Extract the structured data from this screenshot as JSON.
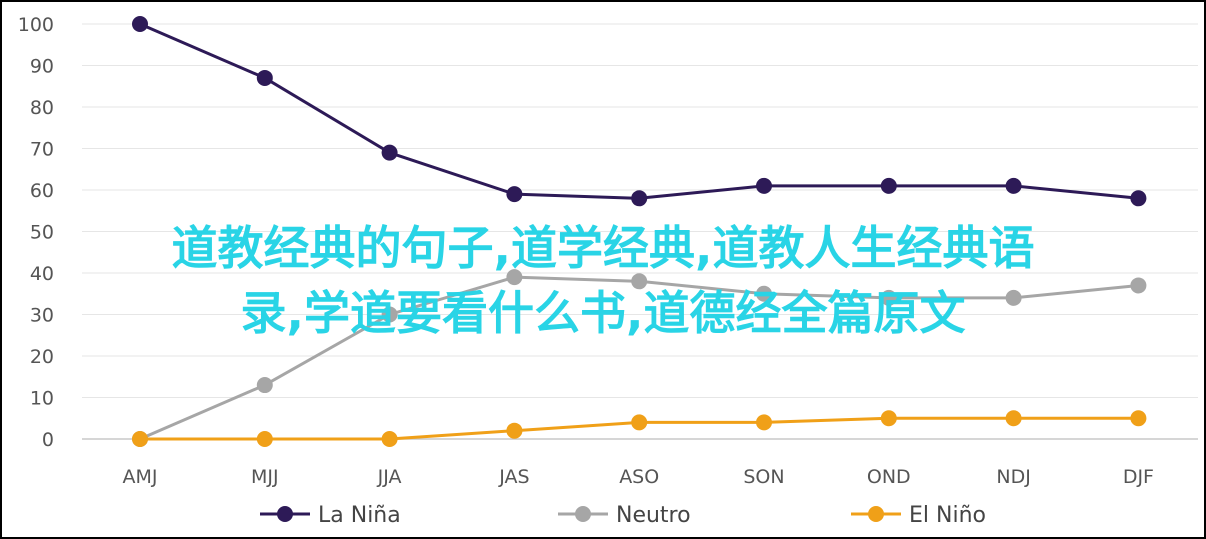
{
  "overlay": {
    "line1": "道教经典的句子,道学经典,道教人生经典语",
    "line2": "录,学道要看什么书,道德经全篇原文"
  },
  "chart_data": {
    "type": "line",
    "categories": [
      "AMJ",
      "MJJ",
      "JJA",
      "JAS",
      "ASO",
      "SON",
      "OND",
      "NDJ",
      "DJF"
    ],
    "ylim": [
      0,
      100
    ],
    "yticks": [
      "0",
      "10",
      "20",
      "30",
      "40",
      "50",
      "60",
      "70",
      "80",
      "90",
      "100"
    ],
    "grid": true,
    "legend_position": "bottom",
    "series": [
      {
        "name": "La Niña",
        "color": "#2d1a57",
        "values": [
          100,
          87,
          69,
          59,
          58,
          61,
          61,
          61,
          58
        ]
      },
      {
        "name": "Neutro",
        "color": "#a6a6a6",
        "values": [
          0,
          13,
          30,
          39,
          38,
          35,
          34,
          34,
          37
        ]
      },
      {
        "name": "El Niño",
        "color": "#f0a018",
        "values": [
          0,
          0,
          0,
          2,
          4,
          4,
          5,
          5,
          5
        ]
      }
    ]
  }
}
